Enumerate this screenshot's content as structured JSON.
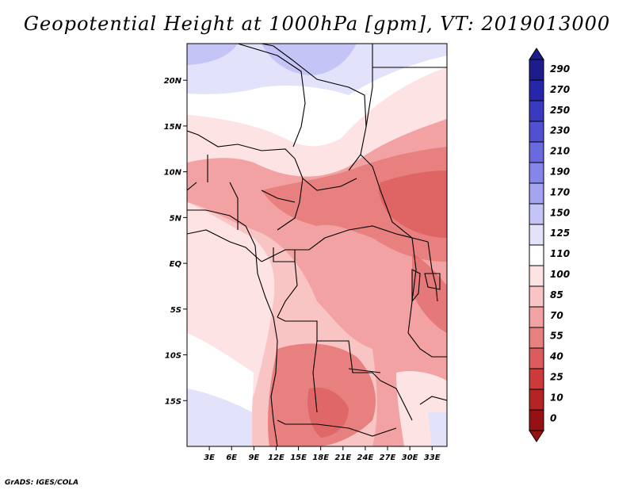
{
  "title": "Geopotential Height at 1000hPa [gpm], VT: 2019013000",
  "credit": "GrADS: IGES/COLA",
  "map": {
    "lat_range": [
      -20,
      24
    ],
    "lon_range": [
      0,
      35
    ],
    "lat_ticks": [
      {
        "value": 20,
        "label": "20N"
      },
      {
        "value": 15,
        "label": "15N"
      },
      {
        "value": 10,
        "label": "10N"
      },
      {
        "value": 5,
        "label": "5N"
      },
      {
        "value": 0,
        "label": "EQ"
      },
      {
        "value": -5,
        "label": "5S"
      },
      {
        "value": -10,
        "label": "10S"
      },
      {
        "value": -15,
        "label": "15S"
      }
    ],
    "lon_ticks": [
      {
        "value": 3,
        "label": "3E"
      },
      {
        "value": 6,
        "label": "6E"
      },
      {
        "value": 9,
        "label": "9E"
      },
      {
        "value": 12,
        "label": "12E"
      },
      {
        "value": 15,
        "label": "15E"
      },
      {
        "value": 18,
        "label": "18E"
      },
      {
        "value": 21,
        "label": "21E"
      },
      {
        "value": 24,
        "label": "24E"
      },
      {
        "value": 27,
        "label": "27E"
      },
      {
        "value": 30,
        "label": "30E"
      },
      {
        "value": 33,
        "label": "33E"
      }
    ]
  },
  "colorbar": {
    "labels": [
      "290",
      "270",
      "250",
      "230",
      "210",
      "190",
      "170",
      "150",
      "125",
      "110",
      "100",
      "85",
      "70",
      "55",
      "40",
      "25",
      "10",
      "0"
    ],
    "colors": [
      "#1c1c8c",
      "#2626a8",
      "#3a3ac0",
      "#5050d0",
      "#6a6ae0",
      "#8686ea",
      "#a4a4f0",
      "#c4c4f6",
      "#e2e2fb",
      "#ffffff",
      "#fde3e3",
      "#f9c4c4",
      "#f2a2a2",
      "#e88080",
      "#dc5c5c",
      "#cc3a3a",
      "#b42424",
      "#961212"
    ]
  },
  "colors": {
    "deep_blue": "#1c1c8c",
    "deep_red": "#961212"
  }
}
